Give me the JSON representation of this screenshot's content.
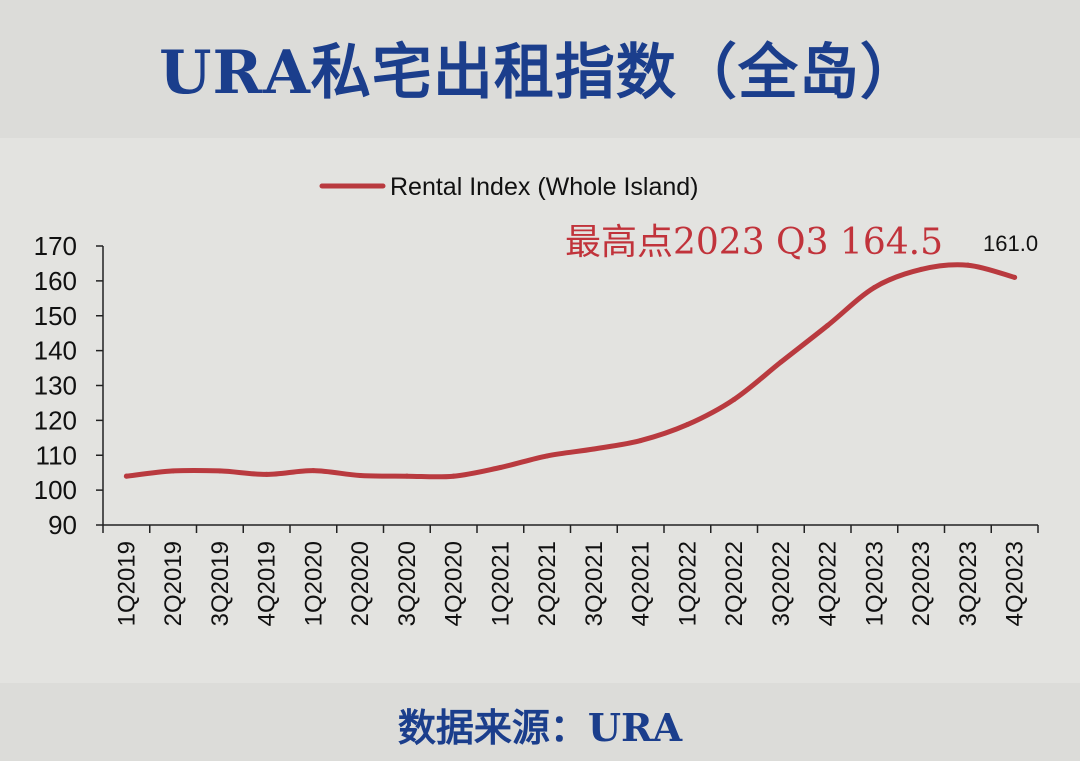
{
  "title": "URA私宅出租指数（全岛）",
  "source": "数据来源：URA",
  "chart_data": {
    "type": "line",
    "title": "URA私宅出租指数（全岛）",
    "categories": [
      "1Q2019",
      "2Q2019",
      "3Q2019",
      "4Q2019",
      "1Q2020",
      "2Q2020",
      "3Q2020",
      "4Q2020",
      "1Q2021",
      "2Q2021",
      "3Q2021",
      "4Q2021",
      "1Q2022",
      "2Q2022",
      "3Q2022",
      "4Q2022",
      "1Q2023",
      "2Q2023",
      "3Q2023",
      "4Q2023"
    ],
    "series": [
      {
        "name": "Rental Index (Whole Island)",
        "color": "#b93a3f",
        "values": [
          104.0,
          105.5,
          105.5,
          104.5,
          105.6,
          104.2,
          104.0,
          104.0,
          106.5,
          109.8,
          111.8,
          114.2,
          118.8,
          126.0,
          136.7,
          147.2,
          158.1,
          163.3,
          164.5,
          161.0
        ]
      }
    ],
    "ylim": [
      90,
      170
    ],
    "yticks": [
      90,
      100,
      110,
      120,
      130,
      140,
      150,
      160,
      170
    ],
    "xlabel": "",
    "ylabel": "",
    "legend": "top-center",
    "grid": false,
    "annotations": [
      {
        "text": "最高点2023 Q3 164.5",
        "color": "#c1333b"
      },
      {
        "text": "161.0",
        "color": "#111111"
      }
    ]
  }
}
